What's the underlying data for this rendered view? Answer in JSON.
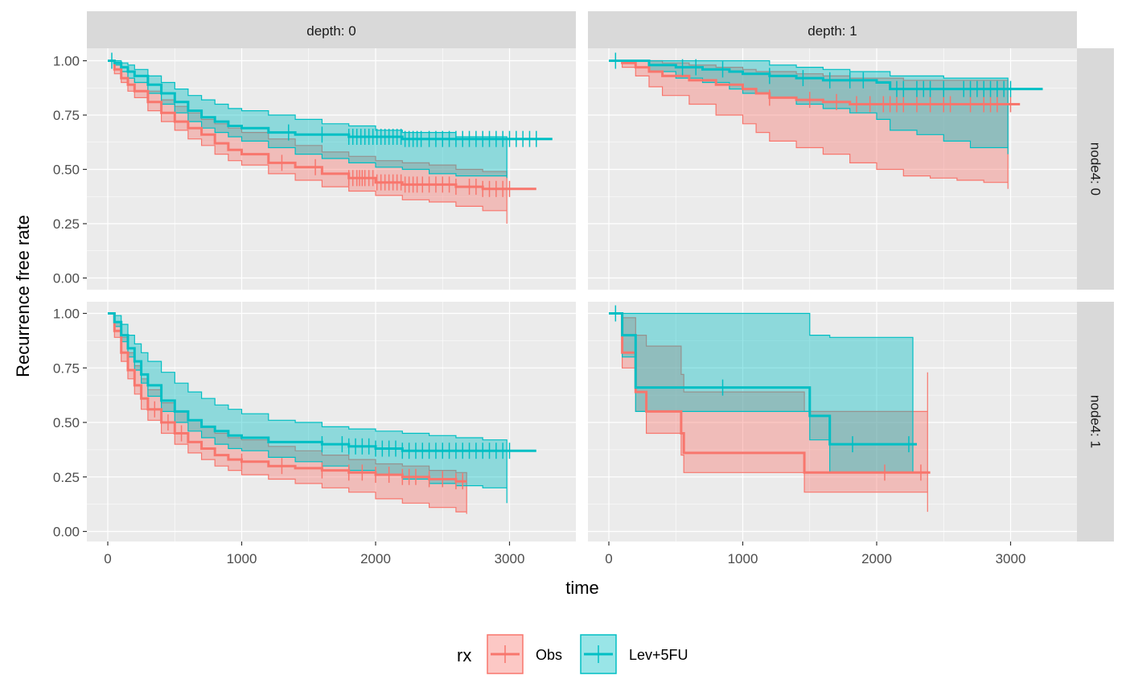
{
  "chart_data": {
    "type": "line",
    "subtype": "kaplan-meier-facet",
    "xlabel": "time",
    "ylabel": "Recurrence free rate",
    "xlim": [
      0,
      3300
    ],
    "ylim": [
      0,
      1
    ],
    "x_ticks": [
      0,
      1000,
      2000,
      3000
    ],
    "y_ticks": [
      0,
      0.25,
      0.5,
      0.75,
      1.0
    ],
    "y_tick_labels": [
      "0.00",
      "0.25",
      "0.50",
      "0.75",
      "1.00"
    ],
    "col_facets": [
      "depth: 0",
      "depth: 1"
    ],
    "row_facets": [
      "node4: 0",
      "node4: 1"
    ],
    "grid": true,
    "legend": {
      "title": "rx",
      "position": "bottom",
      "entries": [
        {
          "key": "obs",
          "label": "Obs"
        },
        {
          "key": "lev5fu",
          "label": "Lev+5FU"
        }
      ]
    },
    "colors": {
      "obs": "#F8766D",
      "lev5fu": "#00BFC4",
      "overlap_line": "#9E9E9E",
      "panel_bg": "#EBEBEB",
      "strip_bg": "#D9D9D9",
      "grid": "#FFFFFF"
    },
    "panels": [
      {
        "row": 0,
        "col": 0,
        "series": {
          "obs": {
            "end": 2980,
            "censor_end": 3200,
            "x": [
              0,
              50,
              100,
              150,
              200,
              300,
              400,
              500,
              600,
              700,
              800,
              900,
              1000,
              1200,
              1400,
              1600,
              1800,
              2000,
              2200,
              2400,
              2600,
              2800,
              2980
            ],
            "y": [
              1.0,
              0.96,
              0.92,
              0.89,
              0.86,
              0.81,
              0.76,
              0.72,
              0.69,
              0.66,
              0.62,
              0.59,
              0.57,
              0.53,
              0.51,
              0.48,
              0.46,
              0.44,
              0.43,
              0.43,
              0.42,
              0.41,
              0.41
            ],
            "lower": [
              1.0,
              0.94,
              0.9,
              0.86,
              0.83,
              0.77,
              0.72,
              0.68,
              0.64,
              0.61,
              0.57,
              0.54,
              0.52,
              0.48,
              0.45,
              0.42,
              0.4,
              0.38,
              0.36,
              0.35,
              0.33,
              0.31,
              0.25
            ],
            "upper": [
              1.0,
              0.98,
              0.95,
              0.92,
              0.9,
              0.86,
              0.82,
              0.79,
              0.76,
              0.73,
              0.71,
              0.69,
              0.67,
              0.64,
              0.61,
              0.58,
              0.56,
              0.54,
              0.53,
              0.52,
              0.5,
              0.49,
              0.47
            ],
            "censor": [
              1300,
              1550,
              1800,
              1830,
              1860,
              1880,
              1900,
              1920,
              1950,
              1980,
              2010,
              2040,
              2070,
              2100,
              2130,
              2160,
              2190,
              2220,
              2250,
              2280,
              2310,
              2350,
              2400,
              2450,
              2500,
              2550,
              2600,
              2700,
              2750,
              2800,
              2850,
              2900,
              2950,
              3000
            ]
          },
          "lev5fu": {
            "end": 2980,
            "censor_end": 3320,
            "x": [
              0,
              50,
              100,
              150,
              200,
              300,
              400,
              500,
              600,
              700,
              800,
              900,
              1000,
              1200,
              1400,
              1600,
              1800,
              2000,
              2200,
              2400,
              2600,
              2800,
              2980
            ],
            "y": [
              1.0,
              0.99,
              0.97,
              0.95,
              0.93,
              0.89,
              0.85,
              0.81,
              0.77,
              0.74,
              0.72,
              0.7,
              0.69,
              0.67,
              0.66,
              0.66,
              0.65,
              0.65,
              0.64,
              0.64,
              0.64,
              0.64,
              0.64
            ],
            "lower": [
              1.0,
              0.98,
              0.95,
              0.92,
              0.9,
              0.85,
              0.8,
              0.76,
              0.72,
              0.69,
              0.67,
              0.65,
              0.63,
              0.6,
              0.57,
              0.55,
              0.53,
              0.51,
              0.5,
              0.48,
              0.47,
              0.47,
              0.46
            ],
            "upper": [
              1.0,
              1.0,
              0.99,
              0.98,
              0.96,
              0.93,
              0.9,
              0.87,
              0.84,
              0.82,
              0.8,
              0.78,
              0.77,
              0.75,
              0.73,
              0.71,
              0.7,
              0.68,
              0.67,
              0.67,
              0.65,
              0.65,
              0.65
            ],
            "censor": [
              30,
              1350,
              1600,
              1800,
              1830,
              1860,
              1890,
              1920,
              1950,
              1980,
              2010,
              2040,
              2070,
              2100,
              2130,
              2160,
              2190,
              2220,
              2250,
              2280,
              2310,
              2340,
              2400,
              2450,
              2500,
              2550,
              2600,
              2650,
              2700,
              2750,
              2800,
              2850,
              2900,
              2950,
              3000,
              3050,
              3100,
              3150,
              3200
            ]
          }
        }
      },
      {
        "row": 0,
        "col": 1,
        "series": {
          "obs": {
            "end": 2980,
            "censor_end": 3070,
            "x": [
              0,
              100,
              200,
              300,
              400,
              600,
              800,
              1000,
              1100,
              1200,
              1400,
              1600,
              1800,
              2000,
              2200,
              2400,
              2600,
              2800,
              2980
            ],
            "y": [
              1.0,
              0.99,
              0.97,
              0.95,
              0.93,
              0.91,
              0.89,
              0.87,
              0.85,
              0.83,
              0.82,
              0.81,
              0.8,
              0.8,
              0.8,
              0.8,
              0.8,
              0.8,
              0.8
            ],
            "lower": [
              1.0,
              0.97,
              0.93,
              0.88,
              0.84,
              0.8,
              0.75,
              0.71,
              0.67,
              0.63,
              0.6,
              0.57,
              0.53,
              0.5,
              0.47,
              0.46,
              0.45,
              0.44,
              0.41
            ],
            "upper": [
              1.0,
              1.0,
              1.0,
              1.0,
              0.99,
              0.98,
              0.97,
              0.96,
              0.95,
              0.95,
              0.94,
              0.93,
              0.92,
              0.92,
              0.91,
              0.91,
              0.91,
              0.91,
              0.91
            ],
            "censor": [
              1200,
              1500,
              1700,
              1850,
              1950,
              2050,
              2100,
              2150,
              2200,
              2300,
              2400,
              2500,
              2550,
              2700,
              2800,
              2850,
              2900,
              3000
            ]
          },
          "lev5fu": {
            "end": 2980,
            "censor_end": 3240,
            "x": [
              0,
              100,
              300,
              500,
              700,
              900,
              1000,
              1200,
              1400,
              1600,
              1800,
              2000,
              2100,
              2300,
              2500,
              2700,
              2980
            ],
            "y": [
              1.0,
              1.0,
              0.98,
              0.97,
              0.96,
              0.95,
              0.94,
              0.93,
              0.92,
              0.91,
              0.91,
              0.9,
              0.87,
              0.87,
              0.87,
              0.87,
              0.87
            ],
            "lower": [
              1.0,
              1.0,
              0.95,
              0.92,
              0.9,
              0.87,
              0.85,
              0.83,
              0.8,
              0.78,
              0.76,
              0.73,
              0.68,
              0.66,
              0.63,
              0.6,
              0.57
            ],
            "upper": [
              1.0,
              1.0,
              1.0,
              1.0,
              1.0,
              1.0,
              1.0,
              0.98,
              0.97,
              0.96,
              0.95,
              0.95,
              0.93,
              0.93,
              0.92,
              0.92,
              0.92
            ],
            "censor": [
              50,
              550,
              650,
              850,
              1200,
              1450,
              1650,
              1800,
              1900,
              2150,
              2200,
              2300,
              2350,
              2400,
              2500,
              2650,
              2700,
              2750,
              2800,
              2850,
              2900,
              2950,
              3000
            ]
          }
        }
      },
      {
        "row": 1,
        "col": 0,
        "series": {
          "obs": {
            "end": 2680,
            "censor_end": 2680,
            "x": [
              0,
              50,
              100,
              150,
              200,
              250,
              300,
              400,
              500,
              600,
              700,
              800,
              900,
              1000,
              1200,
              1400,
              1600,
              1800,
              2000,
              2200,
              2400,
              2600,
              2680
            ],
            "y": [
              1.0,
              0.92,
              0.82,
              0.74,
              0.67,
              0.61,
              0.56,
              0.5,
              0.45,
              0.41,
              0.38,
              0.35,
              0.33,
              0.32,
              0.3,
              0.29,
              0.28,
              0.27,
              0.26,
              0.25,
              0.24,
              0.23,
              0.23
            ],
            "lower": [
              1.0,
              0.89,
              0.78,
              0.7,
              0.63,
              0.56,
              0.51,
              0.45,
              0.4,
              0.36,
              0.33,
              0.3,
              0.28,
              0.26,
              0.24,
              0.22,
              0.2,
              0.18,
              0.15,
              0.13,
              0.11,
              0.09,
              0.08
            ],
            "upper": [
              1.0,
              0.96,
              0.89,
              0.82,
              0.76,
              0.7,
              0.65,
              0.59,
              0.55,
              0.51,
              0.48,
              0.45,
              0.43,
              0.42,
              0.39,
              0.37,
              0.35,
              0.33,
              0.31,
              0.3,
              0.28,
              0.27,
              0.26
            ],
            "censor": [
              350,
              450,
              550,
              1000,
              1300,
              1600,
              1800,
              1900,
              2000,
              2100,
              2200,
              2250,
              2300,
              2400,
              2500,
              2600,
              2650
            ]
          },
          "lev5fu": {
            "end": 2980,
            "censor_end": 3200,
            "x": [
              0,
              50,
              100,
              150,
              200,
              250,
              300,
              400,
              500,
              600,
              700,
              800,
              900,
              1000,
              1200,
              1400,
              1600,
              1800,
              2000,
              2200,
              2400,
              2600,
              2800,
              2980
            ],
            "y": [
              1.0,
              0.96,
              0.9,
              0.84,
              0.78,
              0.72,
              0.67,
              0.6,
              0.55,
              0.51,
              0.48,
              0.46,
              0.44,
              0.43,
              0.41,
              0.41,
              0.4,
              0.39,
              0.38,
              0.37,
              0.37,
              0.37,
              0.37,
              0.37
            ],
            "lower": [
              1.0,
              0.94,
              0.87,
              0.8,
              0.74,
              0.68,
              0.62,
              0.55,
              0.5,
              0.46,
              0.43,
              0.4,
              0.38,
              0.37,
              0.34,
              0.32,
              0.3,
              0.28,
              0.26,
              0.24,
              0.22,
              0.21,
              0.2,
              0.13
            ],
            "upper": [
              1.0,
              0.99,
              0.95,
              0.9,
              0.86,
              0.82,
              0.78,
              0.73,
              0.68,
              0.64,
              0.61,
              0.58,
              0.56,
              0.54,
              0.51,
              0.5,
              0.48,
              0.47,
              0.46,
              0.45,
              0.44,
              0.43,
              0.42,
              0.42
            ],
            "censor": [
              1600,
              1750,
              1800,
              1850,
              1900,
              1950,
              2000,
              2050,
              2100,
              2150,
              2200,
              2250,
              2300,
              2350,
              2400,
              2450,
              2500,
              2550,
              2600,
              2650,
              2700,
              2750,
              2800,
              2850,
              2900,
              2950,
              3000
            ]
          }
        }
      },
      {
        "row": 1,
        "col": 1,
        "series": {
          "obs": {
            "end": 2380,
            "censor_end": 2400,
            "x": [
              0,
              100,
              200,
              280,
              540,
              560,
              1460,
              2380
            ],
            "y": [
              1.0,
              0.82,
              0.64,
              0.55,
              0.45,
              0.36,
              0.27,
              0.27
            ],
            "lower": [
              1.0,
              0.75,
              0.55,
              0.45,
              0.35,
              0.27,
              0.18,
              0.09
            ],
            "upper": [
              1.0,
              0.98,
              0.9,
              0.85,
              0.72,
              0.64,
              0.55,
              0.73
            ],
            "censor": [
              2060,
              2330
            ]
          },
          "lev5fu": {
            "end": 2270,
            "censor_end": 2300,
            "x": [
              0,
              100,
              200,
              1500,
              1650,
              2270
            ],
            "y": [
              1.0,
              0.9,
              0.66,
              0.53,
              0.4,
              0.4
            ],
            "lower": [
              1.0,
              0.8,
              0.55,
              0.42,
              0.27,
              0.27
            ],
            "upper": [
              1.0,
              1.0,
              1.0,
              0.9,
              0.89,
              0.89
            ],
            "censor": [
              50,
              850,
              1820,
              2240
            ]
          }
        }
      }
    ]
  }
}
